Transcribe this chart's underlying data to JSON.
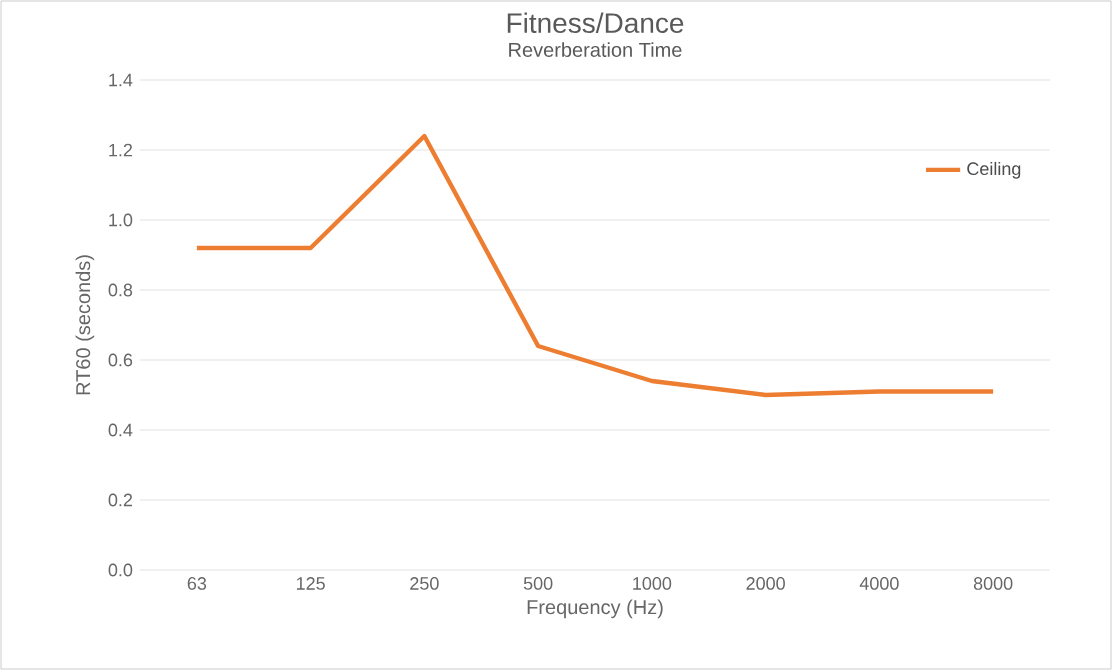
{
  "chart_data": {
    "type": "line",
    "title": "Fitness/Dance",
    "subtitle": "Reverberation Time",
    "xlabel": "Frequency (Hz)",
    "ylabel": "RT60 (seconds)",
    "categories": [
      "63",
      "125",
      "250",
      "500",
      "1000",
      "2000",
      "4000",
      "8000"
    ],
    "series": [
      {
        "name": "Ceiling",
        "color": "#ed7d31",
        "values": [
          0.92,
          0.92,
          1.24,
          0.64,
          0.54,
          0.5,
          0.51,
          0.51
        ]
      }
    ],
    "ylim": [
      0,
      1.4
    ],
    "yticks": [
      {
        "value": 0,
        "label": "0.0"
      },
      {
        "value": 0.2,
        "label": "0.2"
      },
      {
        "value": 0.4,
        "label": "0.4"
      },
      {
        "value": 0.6,
        "label": "0.6"
      },
      {
        "value": 0.8,
        "label": "0.8"
      },
      {
        "value": 1,
        "label": "1.0"
      },
      {
        "value": 1.2,
        "label": "1.2"
      },
      {
        "value": 1.4,
        "label": "1.4"
      }
    ],
    "grid": "y",
    "legend": "top right",
    "marker": "none",
    "line_style": "solid"
  }
}
